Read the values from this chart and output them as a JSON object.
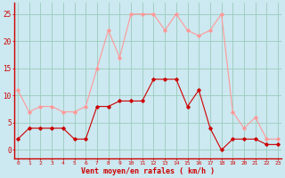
{
  "x": [
    0,
    1,
    2,
    3,
    4,
    5,
    6,
    7,
    8,
    9,
    10,
    11,
    12,
    13,
    14,
    15,
    16,
    17,
    18,
    19,
    20,
    21,
    22,
    23
  ],
  "vent_moyen": [
    2,
    4,
    4,
    4,
    4,
    2,
    2,
    8,
    8,
    9,
    9,
    9,
    13,
    13,
    13,
    8,
    11,
    4,
    0,
    2,
    2,
    2,
    1,
    1
  ],
  "en_rafales": [
    11,
    7,
    8,
    8,
    7,
    7,
    8,
    15,
    22,
    17,
    25,
    25,
    25,
    22,
    25,
    22,
    21,
    22,
    25,
    7,
    4,
    6,
    2,
    2
  ],
  "color_moyen": "#cc0000",
  "color_rafales": "#ff9999",
  "bg_color": "#cce8f0",
  "grid_color": "#99ccbb",
  "xlabel": "Vent moyen/en rafales ( km/h )",
  "ylabel_ticks": [
    0,
    5,
    10,
    15,
    20,
    25
  ],
  "xlim": [
    -0.3,
    23.3
  ],
  "ylim": [
    -1.5,
    27
  ]
}
